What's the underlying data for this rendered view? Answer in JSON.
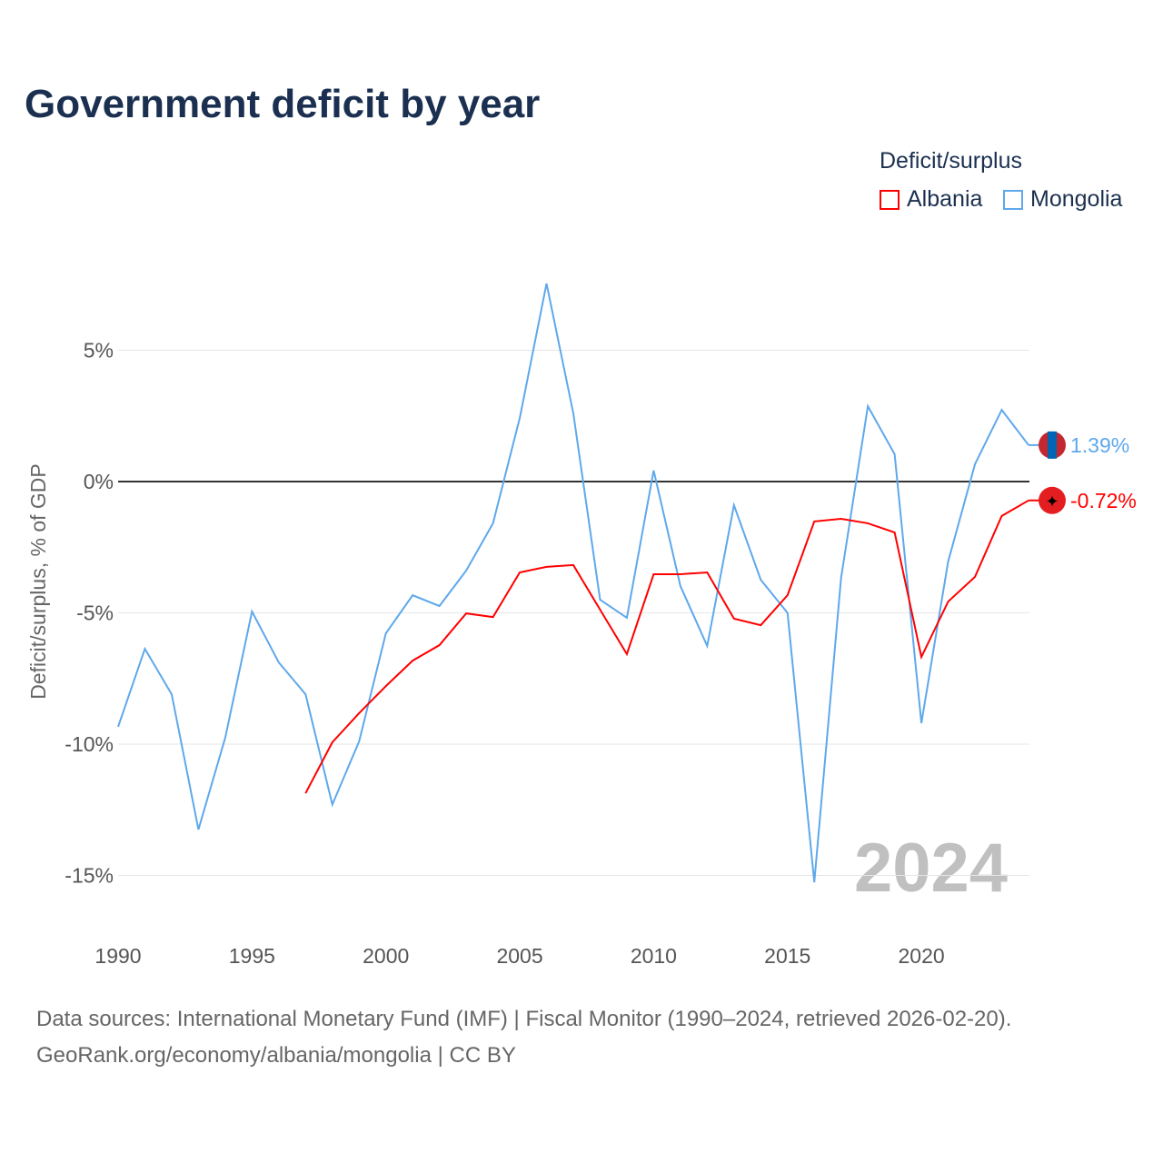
{
  "title": "Government deficit by year",
  "legend": {
    "title": "Deficit/surplus",
    "items": [
      {
        "name": "Albania",
        "color": "#ff0000"
      },
      {
        "name": "Mongolia",
        "color": "#5ea8ec"
      }
    ]
  },
  "year_watermark": "2024",
  "source_line1": "Data sources: International Monetary Fund (IMF) | Fiscal Monitor (1990–2024, retrieved 2026-02-20).",
  "source_line2": "GeoRank.org/economy/albania/mongolia | CC BY",
  "chart_data": {
    "type": "line",
    "title": "Government deficit by year",
    "xlabel": "",
    "ylabel": "Deficit/surplus, % of GDP",
    "xlim": [
      1990,
      2024
    ],
    "ylim": [
      -17,
      9
    ],
    "x_ticks": [
      "1990",
      "1995",
      "2000",
      "2005",
      "2010",
      "2015",
      "2020"
    ],
    "y_ticks": [
      {
        "v": 5,
        "label": "5%"
      },
      {
        "v": 0,
        "label": "0%"
      },
      {
        "v": -5,
        "label": "-5%"
      },
      {
        "v": -10,
        "label": "-10%"
      },
      {
        "v": -15,
        "label": "-15%"
      }
    ],
    "series": [
      {
        "name": "Mongolia",
        "color": "#5ea8ec",
        "end_label": "1.39%",
        "x": [
          1990,
          1991,
          1992,
          1993,
          1994,
          1995,
          1996,
          1997,
          1998,
          1999,
          2000,
          2001,
          2002,
          2003,
          2004,
          2005,
          2006,
          2007,
          2008,
          2009,
          2010,
          2011,
          2012,
          2013,
          2014,
          2015,
          2016,
          2017,
          2018,
          2019,
          2020,
          2021,
          2022,
          2023,
          2024
        ],
        "values": [
          -9.34,
          -6.37,
          -8.1,
          -13.25,
          -9.76,
          -4.95,
          -6.89,
          -8.1,
          -12.3,
          -9.9,
          -5.78,
          -4.33,
          -4.74,
          -3.39,
          -1.59,
          2.42,
          7.54,
          2.6,
          -4.5,
          -5.19,
          0.42,
          -3.98,
          -6.26,
          -0.9,
          -3.74,
          -5.0,
          -15.26,
          -3.67,
          2.87,
          1.04,
          -9.2,
          -3.04,
          0.66,
          2.73,
          1.39
        ]
      },
      {
        "name": "Albania",
        "color": "#ff0000",
        "end_label": "-0.72%",
        "x": [
          1997,
          1998,
          1999,
          2000,
          2001,
          2002,
          2003,
          2004,
          2005,
          2006,
          2007,
          2008,
          2009,
          2010,
          2011,
          2012,
          2013,
          2014,
          2015,
          2016,
          2017,
          2018,
          2019,
          2020,
          2021,
          2022,
          2023,
          2024
        ],
        "values": [
          -11.87,
          -9.93,
          -8.82,
          -7.79,
          -6.82,
          -6.23,
          -5.02,
          -5.16,
          -3.46,
          -3.25,
          -3.18,
          -4.88,
          -6.57,
          -3.53,
          -3.53,
          -3.46,
          -5.22,
          -5.47,
          -4.33,
          -1.52,
          -1.42,
          -1.59,
          -1.94,
          -6.68,
          -4.57,
          -3.63,
          -1.31,
          -0.72
        ]
      }
    ]
  }
}
